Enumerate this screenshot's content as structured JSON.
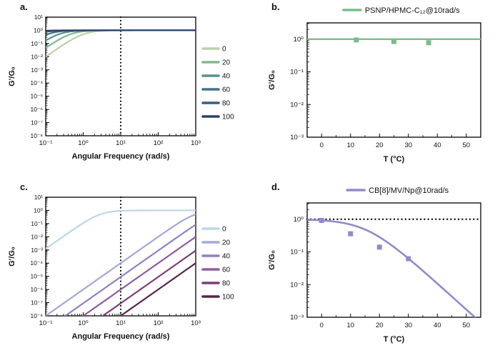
{
  "figure_bg": "#ffffff",
  "panels": {
    "a": {
      "letter": "a."
    },
    "b": {
      "letter": "b."
    },
    "c": {
      "letter": "c."
    },
    "d": {
      "letter": "d."
    }
  },
  "chart_data": [
    {
      "id": "a",
      "kind": "frequency_sweep",
      "type": "line",
      "xlabel": "Angular Frequency (rad/s)",
      "ylabel": "G'/G₀",
      "x_scale": "log",
      "y_scale": "log",
      "x_decades": [
        -1,
        3
      ],
      "y_decades": [
        -8,
        1
      ],
      "x_tick_exponents": [
        -1,
        0,
        1,
        2,
        3
      ],
      "y_tick_exponents": [
        1,
        0,
        -1,
        -2,
        -3,
        -4,
        -5,
        -6,
        -7,
        -8
      ],
      "vline_x": 10,
      "model": "maxwell: G'/G0 = (wt)^2/(1+(wt)^2), plateau 1",
      "legend_position": "right",
      "series": [
        {
          "label": "0",
          "color": "#b9d3a8",
          "tau": 1.0,
          "plateau": 1
        },
        {
          "label": "20",
          "color": "#83b591",
          "tau": 2.2,
          "plateau": 1
        },
        {
          "label": "40",
          "color": "#579289",
          "tau": 4.5,
          "plateau": 1
        },
        {
          "label": "60",
          "color": "#41748a",
          "tau": 9,
          "plateau": 1
        },
        {
          "label": "80",
          "color": "#355d83",
          "tau": 18,
          "plateau": 1
        },
        {
          "label": "100",
          "color": "#2b3f69",
          "tau": 36,
          "plateau": 1
        }
      ]
    },
    {
      "id": "b",
      "kind": "temperature_sweep",
      "type": "scatter",
      "title": "PSNP/HPMC-C₁₂@10rad/s",
      "xlabel": "T (°C)",
      "ylabel": "G'/G₀",
      "x_scale": "linear",
      "y_scale": "log",
      "xlim": [
        -5,
        55
      ],
      "x_ticks": [
        0,
        10,
        20,
        30,
        40,
        50
      ],
      "y_exp_range": [
        -3,
        0.5
      ],
      "y_tick_exponents": [
        0,
        -1,
        -2,
        -3
      ],
      "color": "#7cbb8b",
      "hline": {
        "y": 1,
        "color": "#7cbb8b",
        "style": "solid"
      },
      "points": [
        [
          12,
          0.95
        ],
        [
          25,
          0.85
        ],
        [
          37,
          0.78
        ]
      ]
    },
    {
      "id": "c",
      "kind": "frequency_sweep",
      "type": "line",
      "xlabel": "Angular Frequency (rad/s)",
      "ylabel": "G'/G₀",
      "x_scale": "log",
      "y_scale": "log",
      "x_decades": [
        -1,
        3
      ],
      "y_decades": [
        -8,
        1
      ],
      "x_tick_exponents": [
        -1,
        0,
        1,
        2,
        3
      ],
      "y_tick_exponents": [
        1,
        0,
        -1,
        -2,
        -3,
        -4,
        -5,
        -6,
        -7,
        -8
      ],
      "vline_x": 10,
      "model": "maxwell: G'/G0 = (wt)^2/(1+(wt)^2), plateau 1",
      "legend_position": "right",
      "series": [
        {
          "label": "0",
          "color": "#bcd7e6",
          "tau": 0.35,
          "plateau": 1
        },
        {
          "label": "20",
          "color": "#a3a8d6",
          "tau": 0.001,
          "plateau": 1
        },
        {
          "label": "40",
          "color": "#9181bf",
          "tau": 0.0003,
          "plateau": 1
        },
        {
          "label": "60",
          "color": "#8c5d9e",
          "tau": 0.0001,
          "plateau": 1
        },
        {
          "label": "80",
          "color": "#7c3f75",
          "tau": 3e-05,
          "plateau": 1
        },
        {
          "label": "100",
          "color": "#5a2547",
          "tau": 1e-05,
          "plateau": 1
        }
      ]
    },
    {
      "id": "d",
      "kind": "temperature_sweep",
      "type": "scatter+line",
      "title": "CB[8]/MV/Np@10rad/s",
      "xlabel": "T (°C)",
      "ylabel": "G'/G₀",
      "x_scale": "linear",
      "y_scale": "log",
      "xlim": [
        -5,
        55
      ],
      "x_ticks": [
        0,
        10,
        20,
        30,
        40,
        50
      ],
      "y_exp_range": [
        -3,
        0.5
      ],
      "y_tick_exponents": [
        0,
        -1,
        -2,
        -3
      ],
      "color": "#8f8bcc",
      "hline": {
        "y": 1,
        "color": "#111111",
        "style": "dotted"
      },
      "curve": {
        "color": "#8f8bcc",
        "model": "log10(y) = -softplus((T-T0)/sharpness)*sharpness/C_per_decade",
        "T0": 15.5,
        "sharpness": 6,
        "C_per_decade": 12.5
      },
      "points": [
        [
          0,
          0.92
        ],
        [
          10,
          0.36
        ],
        [
          20,
          0.14
        ],
        [
          30,
          0.062
        ]
      ]
    }
  ]
}
